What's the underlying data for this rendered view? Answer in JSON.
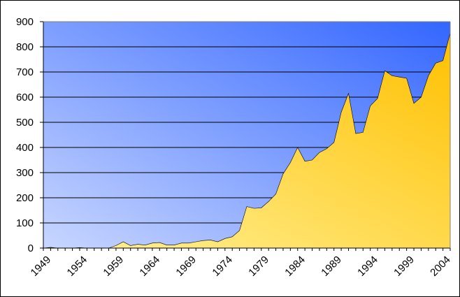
{
  "chart_data": {
    "type": "area",
    "title": "",
    "xlabel": "",
    "ylabel": "",
    "ylim": [
      0,
      900
    ],
    "xlim": [
      1949,
      2005
    ],
    "yticks": [
      "0",
      "100",
      "200",
      "300",
      "400",
      "500",
      "600",
      "700",
      "800",
      "900"
    ],
    "xticks": [
      "1949",
      "1954",
      "1959",
      "1964",
      "1969",
      "1974",
      "1979",
      "1984",
      "1989",
      "1994",
      "1999",
      "2004"
    ],
    "grid": true,
    "legend": "none",
    "plot_background": {
      "from": "#c8d6ff",
      "to": "#3366ff"
    },
    "area_fill": {
      "from": "#fff29a",
      "to": "#ffc000"
    },
    "series": [
      {
        "x": [
          1949,
          1950,
          1951,
          1952,
          1953,
          1954,
          1955,
          1956,
          1957,
          1958,
          1959,
          1960,
          1961,
          1962,
          1963,
          1964,
          1965,
          1966,
          1967,
          1968,
          1969,
          1970,
          1971,
          1972,
          1973,
          1974,
          1975,
          1976,
          1977,
          1978,
          1979,
          1980,
          1981,
          1982,
          1983,
          1984,
          1985,
          1986,
          1987,
          1988,
          1989,
          1990,
          1991,
          1992,
          1993,
          1994,
          1995,
          1996,
          1997,
          1998,
          1999,
          2000,
          2001,
          2002,
          2003,
          2004,
          2005
        ],
        "values": [
          0,
          3,
          0,
          0,
          0,
          2,
          0,
          0,
          0,
          0,
          10,
          25,
          10,
          15,
          12,
          20,
          22,
          12,
          12,
          20,
          20,
          25,
          30,
          32,
          25,
          38,
          45,
          70,
          165,
          158,
          160,
          185,
          215,
          295,
          340,
          400,
          345,
          350,
          380,
          395,
          420,
          540,
          615,
          455,
          460,
          565,
          595,
          705,
          685,
          680,
          675,
          575,
          600,
          685,
          735,
          745,
          855
        ]
      }
    ]
  }
}
